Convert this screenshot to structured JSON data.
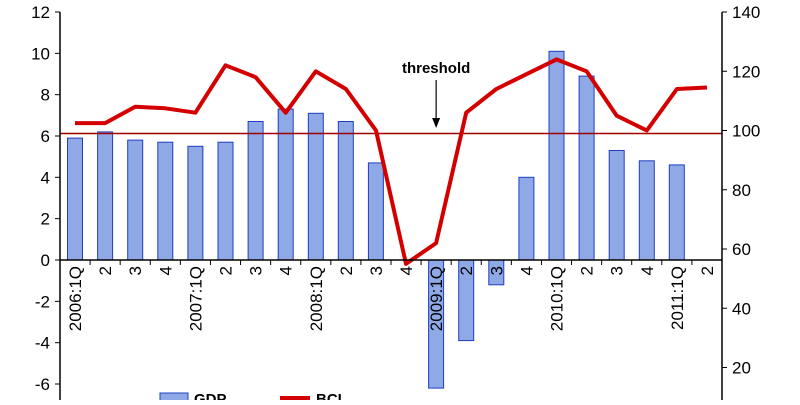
{
  "chart_data": {
    "type": "bar",
    "categories": [
      "2006:1Q",
      "2",
      "3",
      "4",
      "2007:1Q",
      "2",
      "3",
      "4",
      "2008:1Q",
      "2",
      "3",
      "4",
      "2009:1Q",
      "2",
      "3",
      "4",
      "2010:1Q",
      "2",
      "3",
      "4",
      "2011:1Q",
      "2"
    ],
    "series": [
      {
        "name": "GDP",
        "type": "bar",
        "axis": "left",
        "color": "#8fa8e6",
        "values": [
          5.9,
          6.2,
          5.8,
          5.7,
          5.5,
          5.7,
          6.7,
          7.3,
          7.1,
          6.7,
          4.7,
          null,
          -6.2,
          -3.9,
          -1.2,
          4.0,
          10.1,
          8.9,
          5.3,
          4.8,
          4.6,
          null
        ]
      },
      {
        "name": "BCI",
        "type": "line",
        "axis": "right",
        "color": "#d40000",
        "values": [
          102.5,
          102.5,
          108,
          107.5,
          106,
          122,
          118,
          106,
          120,
          114,
          100,
          55,
          62,
          106,
          114,
          119,
          124,
          120,
          105,
          100,
          114,
          114.5
        ]
      }
    ],
    "threshold": {
      "axis": "right",
      "value": 99,
      "label": "threshold",
      "color": "#a00000"
    },
    "ylim_left": [
      -6,
      12
    ],
    "yticks_left": [
      -6,
      -4,
      -2,
      0,
      2,
      4,
      6,
      8,
      10,
      12
    ],
    "ylim_right": [
      0,
      140
    ],
    "yticks_right": [
      20,
      40,
      60,
      80,
      100,
      120,
      140
    ],
    "grid": false,
    "legend_position": "bottom"
  }
}
